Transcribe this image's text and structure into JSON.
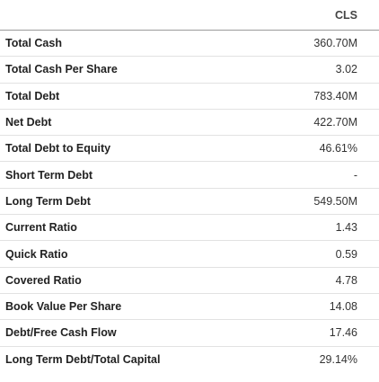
{
  "table": {
    "column_header": "CLS",
    "rows": [
      {
        "label": "Total Cash",
        "value": "360.70M"
      },
      {
        "label": "Total Cash Per Share",
        "value": "3.02"
      },
      {
        "label": "Total Debt",
        "value": "783.40M"
      },
      {
        "label": "Net Debt",
        "value": "422.70M"
      },
      {
        "label": "Total Debt to Equity",
        "value": "46.61%"
      },
      {
        "label": "Short Term Debt",
        "value": "-"
      },
      {
        "label": "Long Term Debt",
        "value": "549.50M"
      },
      {
        "label": "Current Ratio",
        "value": "1.43"
      },
      {
        "label": "Quick Ratio",
        "value": "0.59"
      },
      {
        "label": "Covered Ratio",
        "value": "4.78"
      },
      {
        "label": "Book Value Per Share",
        "value": "14.08"
      },
      {
        "label": "Debt/Free Cash Flow",
        "value": "17.46"
      },
      {
        "label": "Long Term Debt/Total Capital",
        "value": "29.14%"
      }
    ]
  }
}
